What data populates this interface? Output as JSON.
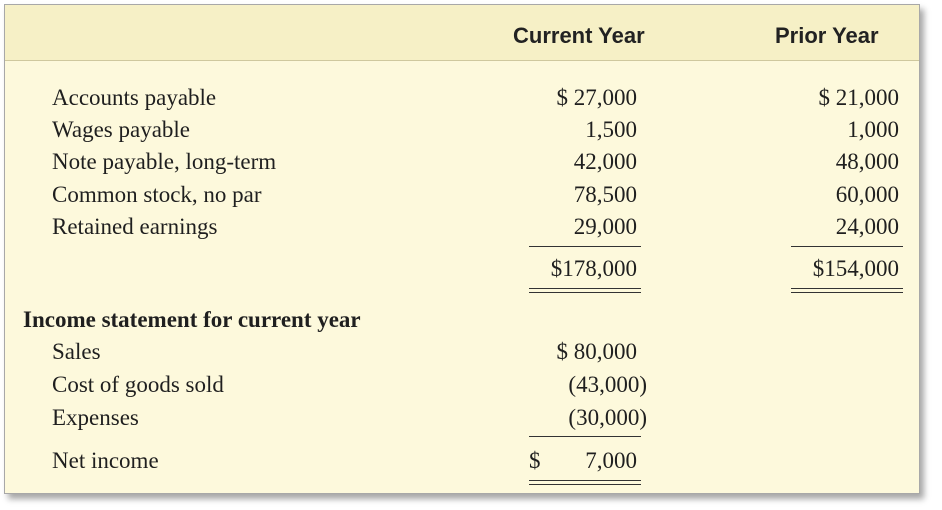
{
  "headers": {
    "current_year": "Current Year",
    "prior_year": "Prior Year"
  },
  "balance_sheet": {
    "rows": [
      {
        "label": "Accounts payable",
        "current": "$ 27,000",
        "prior": "$ 21,000"
      },
      {
        "label": "Wages payable",
        "current": "1,500",
        "prior": "1,000"
      },
      {
        "label": "Note payable, long-term",
        "current": "42,000",
        "prior": "48,000"
      },
      {
        "label": "Common stock, no par",
        "current": "78,500",
        "prior": "60,000"
      },
      {
        "label": "Retained earnings",
        "current": "29,000",
        "prior": "24,000"
      }
    ],
    "total_current": "$178,000",
    "total_prior": "$154,000"
  },
  "income_statement": {
    "title": "Income statement for current year",
    "rows": [
      {
        "label": "Sales",
        "current": "$ 80,000"
      },
      {
        "label": "Cost of goods sold",
        "current": "(43,000)"
      },
      {
        "label": "Expenses",
        "current": "(30,000)"
      }
    ],
    "net_income_label": "Net income",
    "net_income_dollar": "$",
    "net_income_value": "7,000"
  }
}
